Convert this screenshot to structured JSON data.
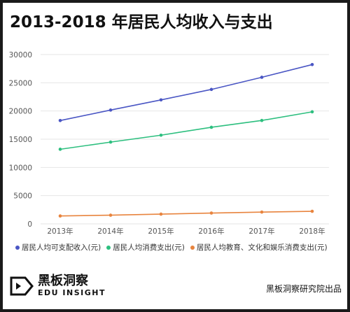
{
  "title": "2013-2018 年居民人均收入与支出",
  "brand": {
    "name_cn": "黑板洞察",
    "name_en": "EDU INSIGHT"
  },
  "credit": "黑板洞察研究院出品",
  "chart_data": {
    "type": "line",
    "categories": [
      "2013年",
      "2014年",
      "2015年",
      "2016年",
      "2017年",
      "2018年"
    ],
    "ylim": [
      0,
      30000
    ],
    "yticks": [
      0,
      5000,
      10000,
      15000,
      20000,
      25000,
      30000
    ],
    "grid": true,
    "legend_position": "bottom",
    "series": [
      {
        "name": "居民人均可支配收入(元)",
        "color": "#4a56c4",
        "values": [
          18311,
          20167,
          21966,
          23821,
          25974,
          28228
        ]
      },
      {
        "name": "居民人均消费支出(元)",
        "color": "#2dbf7f",
        "values": [
          13220,
          14491,
          15712,
          17111,
          18322,
          19853
        ]
      },
      {
        "name": "居民人均教育、文化和娱乐消费支出(元)",
        "color": "#e8843e",
        "values": [
          1398,
          1536,
          1723,
          1915,
          2086,
          2226
        ]
      }
    ]
  }
}
